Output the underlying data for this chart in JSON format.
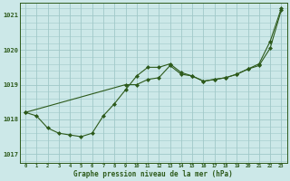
{
  "title": "Graphe pression niveau de la mer (hPa)",
  "background_color": "#cce8e8",
  "grid_color": "#a0c8c8",
  "line_color": "#2d5a1b",
  "xlim": [
    -0.5,
    23.5
  ],
  "ylim": [
    1016.75,
    1021.35
  ],
  "yticks": [
    1017,
    1018,
    1019,
    1020,
    1021
  ],
  "xticks": [
    0,
    1,
    2,
    3,
    4,
    5,
    6,
    7,
    8,
    9,
    10,
    11,
    12,
    13,
    14,
    15,
    16,
    17,
    18,
    19,
    20,
    21,
    22,
    23
  ],
  "series1_x": [
    0,
    1,
    2,
    3,
    4,
    5,
    6,
    7,
    8,
    9,
    10,
    11,
    12,
    13,
    14,
    15,
    16,
    17,
    18,
    19,
    20,
    21,
    22,
    23
  ],
  "series1_y": [
    1018.2,
    1018.1,
    1017.75,
    1017.6,
    1017.55,
    1017.5,
    1017.6,
    1018.1,
    1018.45,
    1018.85,
    1019.25,
    1019.5,
    1019.5,
    1019.6,
    1019.35,
    1019.25,
    1019.1,
    1019.15,
    1019.2,
    1019.3,
    1019.45,
    1019.6,
    1020.25,
    1021.2
  ],
  "series2_x": [
    0,
    9,
    10,
    11,
    12,
    13,
    14,
    15,
    16,
    17,
    18,
    19,
    20,
    21,
    22,
    23
  ],
  "series2_y": [
    1018.2,
    1019.0,
    1019.0,
    1019.15,
    1019.2,
    1019.55,
    1019.3,
    1019.25,
    1019.1,
    1019.15,
    1019.2,
    1019.3,
    1019.45,
    1019.55,
    1020.05,
    1021.15
  ]
}
